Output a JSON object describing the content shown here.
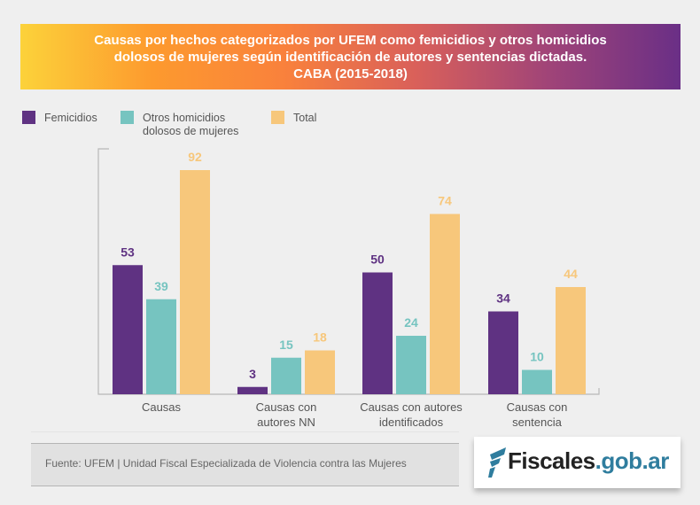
{
  "title": {
    "line1": "Causas por hechos categorizados por UFEM como femicidios y otros homicidios",
    "line2": "dolosos de mujeres según identificación de autores y sentencias dictadas.",
    "line3": "CABA (2015-2018)"
  },
  "legend": [
    {
      "label": "Femicidios",
      "color": "#5f3282"
    },
    {
      "label": "Otros homicidios",
      "label2": "dolosos de mujeres",
      "color": "#76c4c0"
    },
    {
      "label": "Total",
      "color": "#f7c77b"
    }
  ],
  "chart_data": {
    "type": "bar",
    "title": "Causas por hechos categorizados por UFEM como femicidios y otros homicidios dolosos de mujeres según identificación de autores y sentencias dictadas. CABA (2015-2018)",
    "categories": [
      [
        "Causas"
      ],
      [
        "Causas con",
        "autores NN"
      ],
      [
        "Causas con autores",
        "identificados"
      ],
      [
        "Causas con",
        "sentencia"
      ]
    ],
    "series": [
      {
        "name": "Femicidios",
        "color": "#5f3282",
        "values": [
          53,
          3,
          50,
          34
        ]
      },
      {
        "name": "Otros homicidios dolosos de mujeres",
        "color": "#76c4c0",
        "values": [
          39,
          15,
          24,
          10
        ]
      },
      {
        "name": "Total",
        "color": "#f7c77b",
        "values": [
          92,
          18,
          74,
          44
        ]
      }
    ],
    "xlabel": "",
    "ylabel": "",
    "ylim": [
      0,
      100
    ],
    "grid": false,
    "legend_position": "top-left",
    "data_labels": true
  },
  "footer": {
    "source": "Fuente: UFEM | Unidad Fiscal Especializada de Violencia contra las Mujeres",
    "logo_main": "Fiscales",
    "logo_suffix": ".gob.ar"
  }
}
